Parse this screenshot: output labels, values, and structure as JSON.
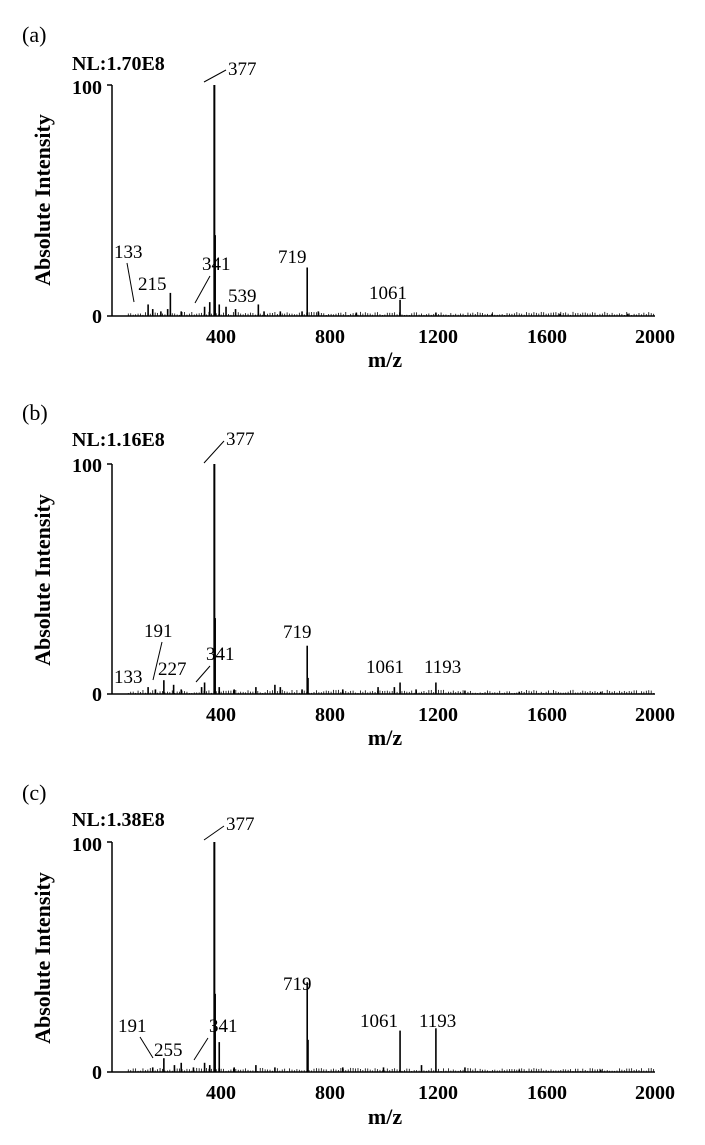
{
  "chart_data": [
    {
      "type": "bar",
      "panel": "(a)",
      "nl": "NL:1.70E8",
      "xlabel": "m/z",
      "ylabel": "Absolute Intensity",
      "xlim": [
        0,
        2000
      ],
      "ylim": [
        0,
        100
      ],
      "xticks": [
        "400",
        "800",
        "1200",
        "1600",
        "2000"
      ],
      "yticks": [
        "0",
        "100"
      ],
      "grid": false,
      "peaks": [
        {
          "x": 133,
          "y": 5
        },
        {
          "x": 150,
          "y": 3
        },
        {
          "x": 180,
          "y": 2
        },
        {
          "x": 205,
          "y": 3
        },
        {
          "x": 215,
          "y": 10
        },
        {
          "x": 255,
          "y": 2
        },
        {
          "x": 341,
          "y": 4
        },
        {
          "x": 360,
          "y": 6
        },
        {
          "x": 377,
          "y": 100
        },
        {
          "x": 380,
          "y": 35
        },
        {
          "x": 395,
          "y": 5
        },
        {
          "x": 420,
          "y": 4
        },
        {
          "x": 455,
          "y": 3
        },
        {
          "x": 539,
          "y": 5
        },
        {
          "x": 560,
          "y": 2
        },
        {
          "x": 620,
          "y": 2
        },
        {
          "x": 700,
          "y": 2
        },
        {
          "x": 719,
          "y": 21
        },
        {
          "x": 760,
          "y": 2
        },
        {
          "x": 900,
          "y": 1.5
        },
        {
          "x": 1061,
          "y": 7
        },
        {
          "x": 1193,
          "y": 1.5
        },
        {
          "x": 1400,
          "y": 1
        },
        {
          "x": 1650,
          "y": 1
        },
        {
          "x": 1900,
          "y": 1
        }
      ],
      "labels": [
        {
          "text": "133",
          "x": 133
        },
        {
          "text": "215",
          "x": 215
        },
        {
          "text": "341",
          "x": 341
        },
        {
          "text": "377",
          "x": 377
        },
        {
          "text": "539",
          "x": 539
        },
        {
          "text": "719",
          "x": 719
        },
        {
          "text": "1061",
          "x": 1061
        }
      ]
    },
    {
      "type": "bar",
      "panel": "(b)",
      "nl": "NL:1.16E8",
      "xlabel": "m/z",
      "ylabel": "Absolute Intensity",
      "xlim": [
        0,
        2000
      ],
      "ylim": [
        0,
        100
      ],
      "xticks": [
        "400",
        "800",
        "1200",
        "1600",
        "2000"
      ],
      "yticks": [
        "0",
        "100"
      ],
      "grid": false,
      "peaks": [
        {
          "x": 133,
          "y": 3
        },
        {
          "x": 160,
          "y": 2
        },
        {
          "x": 191,
          "y": 6
        },
        {
          "x": 227,
          "y": 4
        },
        {
          "x": 255,
          "y": 2
        },
        {
          "x": 330,
          "y": 3
        },
        {
          "x": 341,
          "y": 5
        },
        {
          "x": 377,
          "y": 100
        },
        {
          "x": 380,
          "y": 33
        },
        {
          "x": 395,
          "y": 3
        },
        {
          "x": 450,
          "y": 2
        },
        {
          "x": 530,
          "y": 3
        },
        {
          "x": 600,
          "y": 4
        },
        {
          "x": 620,
          "y": 3
        },
        {
          "x": 700,
          "y": 2
        },
        {
          "x": 719,
          "y": 21
        },
        {
          "x": 722,
          "y": 7
        },
        {
          "x": 850,
          "y": 2
        },
        {
          "x": 980,
          "y": 3
        },
        {
          "x": 1040,
          "y": 3
        },
        {
          "x": 1061,
          "y": 5
        },
        {
          "x": 1120,
          "y": 2
        },
        {
          "x": 1193,
          "y": 5
        },
        {
          "x": 1300,
          "y": 1.5
        },
        {
          "x": 1500,
          "y": 1
        },
        {
          "x": 1800,
          "y": 1
        }
      ],
      "labels": [
        {
          "text": "133",
          "x": 133
        },
        {
          "text": "191",
          "x": 191
        },
        {
          "text": "227",
          "x": 227
        },
        {
          "text": "341",
          "x": 341
        },
        {
          "text": "377",
          "x": 377
        },
        {
          "text": "719",
          "x": 719
        },
        {
          "text": "1061",
          "x": 1061
        },
        {
          "text": "1193",
          "x": 1193
        }
      ]
    },
    {
      "type": "bar",
      "panel": "(c)",
      "nl": "NL:1.38E8",
      "xlabel": "m/z",
      "ylabel": "Absolute Intensity",
      "xlim": [
        0,
        2000
      ],
      "ylim": [
        0,
        100
      ],
      "xticks": [
        "400",
        "800",
        "1200",
        "1600",
        "2000"
      ],
      "yticks": [
        "0",
        "100"
      ],
      "grid": false,
      "peaks": [
        {
          "x": 150,
          "y": 2
        },
        {
          "x": 191,
          "y": 6
        },
        {
          "x": 230,
          "y": 3
        },
        {
          "x": 255,
          "y": 4
        },
        {
          "x": 300,
          "y": 2
        },
        {
          "x": 341,
          "y": 4
        },
        {
          "x": 360,
          "y": 3
        },
        {
          "x": 377,
          "y": 100
        },
        {
          "x": 380,
          "y": 34
        },
        {
          "x": 395,
          "y": 13
        },
        {
          "x": 450,
          "y": 2
        },
        {
          "x": 530,
          "y": 3
        },
        {
          "x": 600,
          "y": 2
        },
        {
          "x": 719,
          "y": 39
        },
        {
          "x": 722,
          "y": 14
        },
        {
          "x": 850,
          "y": 2
        },
        {
          "x": 1000,
          "y": 2
        },
        {
          "x": 1061,
          "y": 18
        },
        {
          "x": 1140,
          "y": 3
        },
        {
          "x": 1193,
          "y": 19
        },
        {
          "x": 1300,
          "y": 2
        },
        {
          "x": 1500,
          "y": 1
        },
        {
          "x": 1800,
          "y": 1
        }
      ],
      "labels": [
        {
          "text": "191",
          "x": 191
        },
        {
          "text": "255",
          "x": 255
        },
        {
          "text": "341",
          "x": 341
        },
        {
          "text": "377",
          "x": 377
        },
        {
          "text": "719",
          "x": 719
        },
        {
          "text": "1061",
          "x": 1061
        },
        {
          "text": "1193",
          "x": 1193
        }
      ]
    }
  ]
}
